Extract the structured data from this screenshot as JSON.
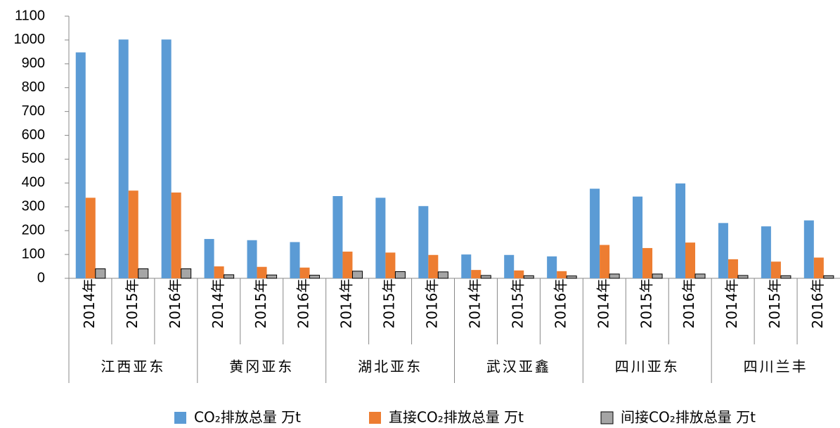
{
  "chart_data": {
    "type": "bar",
    "categories": [
      "2014年",
      "2015年",
      "2016年",
      "2014年",
      "2015年",
      "2016年",
      "2014年",
      "2015年",
      "2016年",
      "2014年",
      "2015年",
      "2016年",
      "2014年",
      "2015年",
      "2016年",
      "2014年",
      "2015年",
      "2016年"
    ],
    "groups": [
      "江西亚东",
      "黄冈亚东",
      "湖北亚东",
      "武汉亚鑫",
      "四川亚东",
      "四川兰丰"
    ],
    "series": [
      {
        "name": "CO₂排放总量 万t",
        "color": "#5b9bd5",
        "values": [
          948,
          1002,
          1002,
          165,
          160,
          152,
          345,
          338,
          303,
          100,
          98,
          92,
          376,
          343,
          398,
          232,
          218,
          243
        ]
      },
      {
        "name": "直接CO₂排放总量 万t",
        "color": "#ed7d31",
        "values": [
          338,
          368,
          360,
          50,
          48,
          45,
          112,
          108,
          98,
          35,
          33,
          30,
          140,
          127,
          150,
          80,
          70,
          87
        ]
      },
      {
        "name": "间接CO₂排放总量 万t",
        "color": "#a5a5a5",
        "values": [
          40,
          40,
          40,
          15,
          14,
          13,
          30,
          28,
          27,
          12,
          11,
          10,
          18,
          18,
          18,
          12,
          11,
          11
        ]
      }
    ],
    "ylim": [
      0,
      1100
    ],
    "yticks": [
      0,
      100,
      200,
      300,
      400,
      500,
      600,
      700,
      800,
      900,
      1000,
      1100
    ],
    "grid": false
  }
}
